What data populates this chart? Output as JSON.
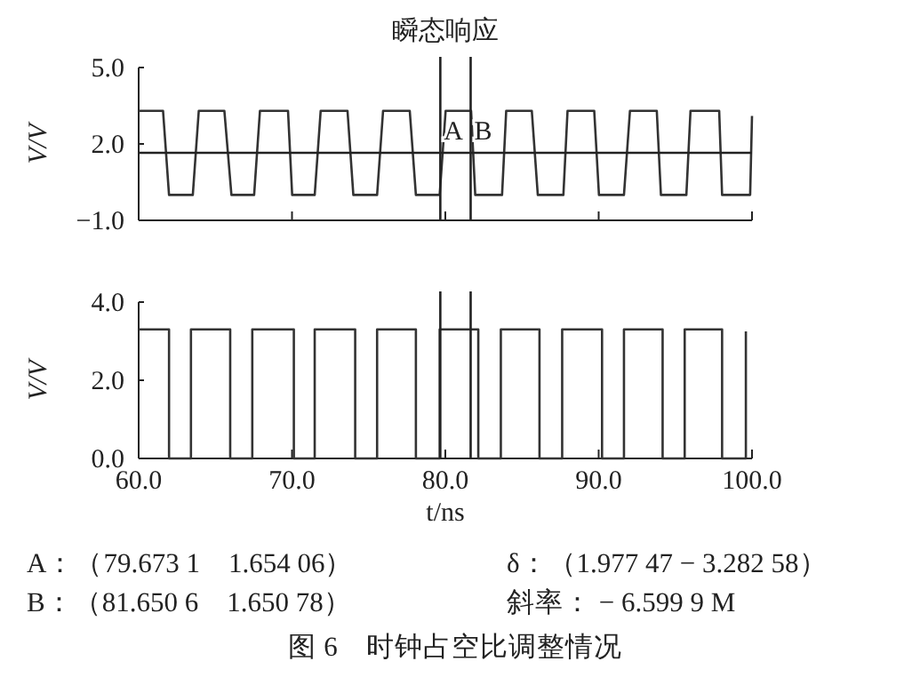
{
  "chart_data": [
    {
      "type": "line",
      "title": "瞬态响应",
      "ylabel": "V/V",
      "xlim": [
        60,
        100
      ],
      "ylim": [
        -1,
        5
      ],
      "xticks": [
        60,
        70,
        80,
        90,
        100
      ],
      "yticks": [
        {
          "value": 5,
          "label": "5.0"
        },
        {
          "value": 2,
          "label": "2.0"
        },
        {
          "value": -1,
          "label": "−1.0"
        }
      ],
      "tick_labels": "y",
      "series": [
        {
          "color": "#333333",
          "x": [
            60,
            61.59,
            61.98,
            63.53,
            63.92,
            65.59,
            66.05,
            67.53,
            67.91,
            69.74,
            70.01,
            71.48,
            71.87,
            73.62,
            74.0,
            75.55,
            75.94,
            77.68,
            78.08,
            79.63,
            80.02,
            81.68,
            81.95,
            83.7,
            83.97,
            85.64,
            86.03,
            87.7,
            87.97,
            89.71,
            90.02,
            91.65,
            92.04,
            93.79,
            94.06,
            95.72,
            95.99,
            97.86,
            98.05,
            99.88,
            100
          ],
          "values": [
            3.3,
            3.3,
            0.0,
            0.0,
            3.3,
            3.3,
            0.0,
            0.0,
            3.3,
            3.3,
            0.0,
            0.0,
            3.3,
            3.3,
            0.0,
            0.0,
            3.3,
            3.3,
            0.0,
            0.0,
            3.3,
            3.3,
            0.0,
            0.0,
            3.3,
            3.3,
            0.0,
            0.0,
            3.3,
            3.3,
            0.0,
            0.0,
            3.3,
            3.3,
            0.0,
            0.0,
            3.3,
            3.3,
            0.0,
            0.0,
            3.1
          ]
        }
      ],
      "ref_lines": [
        {
          "axis": "y",
          "value": 1.65
        },
        {
          "axis": "x",
          "value": 79.6731,
          "label": "A"
        },
        {
          "axis": "x",
          "value": 81.6506,
          "label": "B"
        }
      ]
    },
    {
      "type": "line",
      "ylabel": "V/V",
      "xlabel": "t/ns",
      "xlim": [
        60,
        100
      ],
      "ylim": [
        0,
        4
      ],
      "xticks": [
        {
          "value": 60,
          "label": "60.0"
        },
        {
          "value": 70,
          "label": "70.0"
        },
        {
          "value": 80,
          "label": "80.0"
        },
        {
          "value": 90,
          "label": "90.0"
        },
        {
          "value": 100,
          "label": "100.0"
        }
      ],
      "yticks": [
        {
          "value": 4,
          "label": "4.0"
        },
        {
          "value": 2,
          "label": "2.0"
        },
        {
          "value": 0,
          "label": "0.0"
        }
      ],
      "series": [
        {
          "color": "#333333",
          "x": [
            60,
            61.98,
            61.98,
            63.41,
            63.41,
            65.97,
            65.97,
            67.41,
            67.41,
            70.12,
            70.12,
            71.48,
            71.48,
            74.12,
            74.12,
            75.55,
            75.55,
            78.08,
            78.08,
            79.63,
            79.63,
            82.15,
            82.15,
            83.62,
            83.62,
            86.14,
            86.14,
            87.62,
            87.62,
            90.22,
            90.22,
            91.65,
            91.65,
            94.17,
            94.17,
            95.61,
            95.61,
            98.05,
            98.05,
            99.6,
            99.6
          ],
          "values": [
            3.3,
            3.3,
            0,
            0,
            3.3,
            3.3,
            0,
            0,
            3.3,
            3.3,
            0,
            0,
            3.3,
            3.3,
            0,
            0,
            3.3,
            3.3,
            0,
            0,
            3.3,
            3.3,
            0,
            0,
            3.3,
            3.3,
            0,
            0,
            3.3,
            3.3,
            0,
            0,
            3.3,
            3.3,
            0,
            0,
            3.3,
            3.3,
            0,
            0,
            3.25
          ]
        }
      ],
      "ref_lines": [
        {
          "axis": "x",
          "value": 79.6731
        },
        {
          "axis": "x",
          "value": 81.6506
        }
      ],
      "annotations": [
        "A：（79.673 1　1.654 06）",
        "δ：（1.977 47 − 3.282 58）",
        "B：（81.650 6　1.650 78）",
        "斜率： − 6.599 9 M",
        "图 6　时钟占空比调整情况"
      ]
    }
  ]
}
